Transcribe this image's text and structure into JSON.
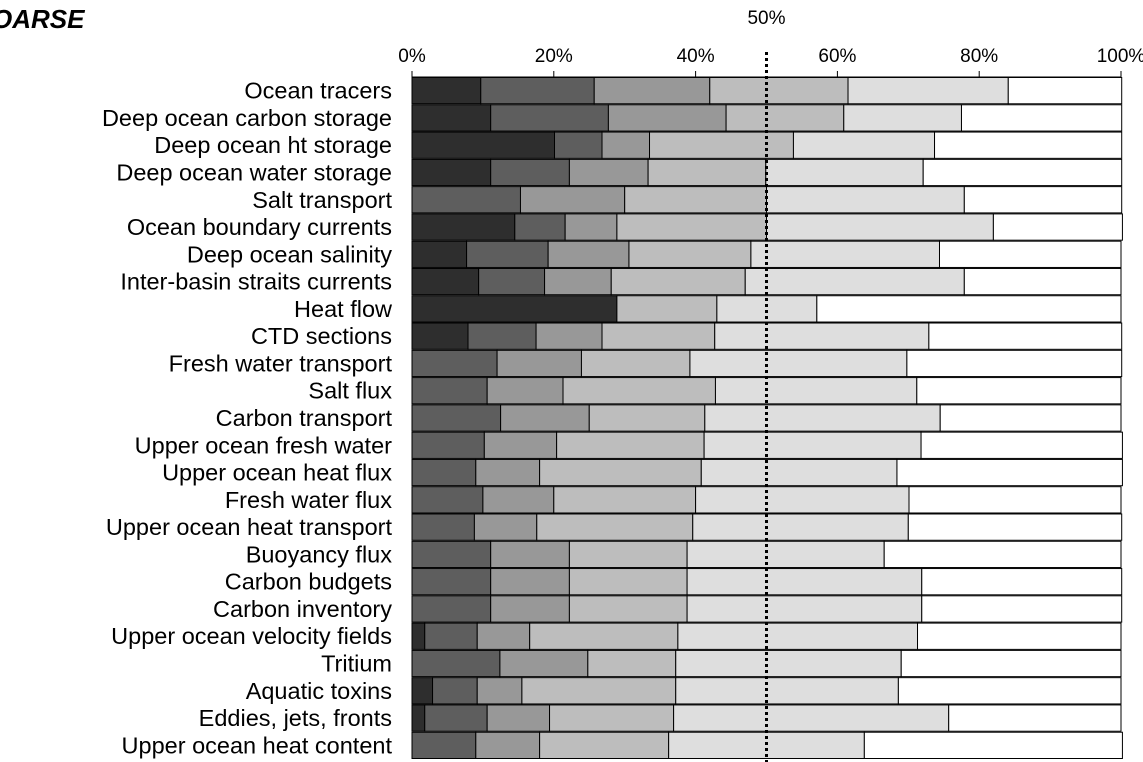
{
  "chart_data": {
    "type": "bar",
    "orientation": "horizontal",
    "stacked": true,
    "title": "OARSE",
    "x_ticks": [
      "0%",
      "20%",
      "40%",
      "60%",
      "80%",
      "100%"
    ],
    "xlim": [
      0,
      100
    ],
    "reference_line": {
      "value": 50,
      "label": "50%"
    },
    "grid": false,
    "legend": "none",
    "colors": [
      "#2e2e2e",
      "#5e5e5e",
      "#989898",
      "#bdbdbd",
      "#dedede",
      "#ffffff"
    ],
    "categories": [
      "Ocean tracers",
      "Deep ocean carbon storage",
      "Deep ocean ht storage",
      "Deep ocean water storage",
      "Salt transport",
      "Ocean boundary currents",
      "Deep ocean salinity",
      "Inter-basin straits currents",
      "Heat flow",
      "CTD sections",
      "Fresh water transport",
      "Salt flux",
      "Carbon  transport",
      "Upper ocean fresh water",
      "Upper ocean heat flux",
      "Fresh water flux",
      "Upper ocean heat transport",
      "Buoyancy flux",
      "Carbon budgets",
      "Carbon inventory",
      "Upper ocean velocity fields",
      "Tritium",
      "Aquatic toxins",
      "Eddies, jets, fronts",
      "Upper ocean heat content"
    ],
    "series": [
      {
        "values": [
          9.7,
          11.1,
          20.1,
          11.1,
          0,
          14.5,
          7.7,
          9.4,
          28.9,
          7.9,
          0,
          0,
          0,
          0,
          0,
          0,
          0,
          0,
          0,
          0,
          1.8,
          0,
          2.9,
          1.8,
          0
        ]
      },
      {
        "values": [
          16.0,
          16.6,
          6.7,
          11.1,
          15.3,
          7.1,
          11.5,
          9.3,
          0,
          9.6,
          12.0,
          10.6,
          12.5,
          10.2,
          9.0,
          10.0,
          8.8,
          11.1,
          11.1,
          11.1,
          7.4,
          12.4,
          6.3,
          8.8,
          9.0
        ]
      },
      {
        "values": [
          16.3,
          16.6,
          6.7,
          11.1,
          14.7,
          7.3,
          11.4,
          9.4,
          0,
          9.3,
          11.9,
          10.7,
          12.5,
          10.2,
          9.0,
          10.0,
          8.8,
          11.1,
          11.1,
          11.1,
          7.4,
          12.4,
          6.3,
          8.8,
          9.0
        ]
      },
      {
        "values": [
          19.5,
          16.6,
          20.3,
          16.6,
          20.0,
          21.1,
          17.2,
          18.9,
          14.1,
          15.9,
          15.3,
          21.5,
          16.3,
          20.8,
          22.8,
          20.0,
          22.0,
          16.6,
          16.6,
          16.6,
          20.9,
          12.4,
          21.7,
          17.5,
          18.2
        ]
      },
      {
        "values": [
          22.6,
          16.6,
          19.9,
          22.2,
          27.9,
          32.0,
          26.6,
          30.9,
          14.1,
          30.2,
          30.6,
          28.4,
          33.2,
          30.6,
          27.6,
          30.1,
          30.4,
          27.8,
          33.1,
          33.1,
          33.8,
          31.8,
          31.4,
          38.8,
          27.6
        ]
      },
      {
        "values": [
          16.0,
          22.6,
          26.4,
          28.0,
          22.2,
          18.2,
          25.6,
          22.1,
          42.9,
          27.2,
          30.3,
          28.8,
          25.5,
          28.4,
          31.8,
          29.9,
          30.1,
          33.4,
          28.2,
          28.2,
          28.7,
          31.0,
          31.4,
          24.3,
          36.4
        ]
      }
    ]
  }
}
